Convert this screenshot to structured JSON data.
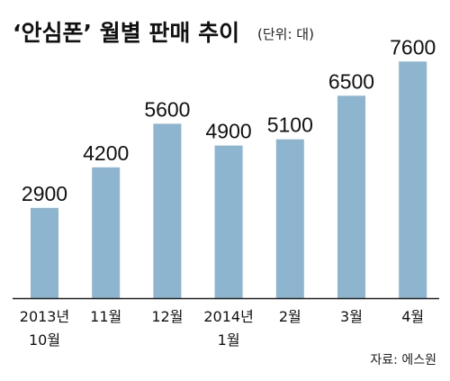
{
  "chart_data": {
    "type": "bar",
    "title": "‘안심폰’ 월별 판매 추이",
    "unit_note": "(단위: 대)",
    "categories": [
      [
        "2013년",
        "10월"
      ],
      [
        "11월"
      ],
      [
        "12월"
      ],
      [
        "2014년",
        "1월"
      ],
      [
        "2월"
      ],
      [
        "3월"
      ],
      [
        "4월"
      ]
    ],
    "values": [
      2900,
      4200,
      5600,
      4900,
      5100,
      6500,
      7600
    ],
    "value_labels": [
      "2900",
      "4200",
      "5600",
      "4900",
      "5100",
      "6500",
      "7600"
    ],
    "ylim": [
      0,
      8100
    ],
    "grid": false,
    "legend": "none",
    "source": "자료: 에스원",
    "colors": {
      "bar": "#8db5d0",
      "axis": "#222222",
      "text": "#111111"
    }
  }
}
